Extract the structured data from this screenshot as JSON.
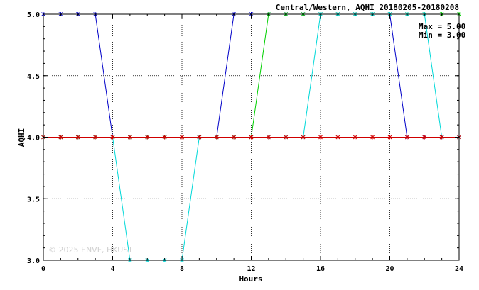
{
  "chart_data": {
    "type": "line",
    "title": "Central/Western, AQHI 20180205-20180208",
    "xlabel": "Hours",
    "ylabel": "AQHI",
    "xlim": [
      0,
      24
    ],
    "ylim": [
      3.0,
      5.0
    ],
    "xticks": [
      0,
      4,
      8,
      12,
      16,
      20,
      24
    ],
    "yticks": [
      3.0,
      3.5,
      4.0,
      4.5,
      5.0
    ],
    "xtick_labels": [
      "0",
      "4",
      "8",
      "12",
      "16",
      "20",
      "24"
    ],
    "ytick_labels": [
      "3.0",
      "3.5",
      "4.0",
      "4.5",
      "5.0"
    ],
    "grid": true,
    "annotations": {
      "max": "Max = 5.00",
      "min": "Min = 3.00"
    },
    "watermark": "© 2025  ENVF, HKUST",
    "x": [
      0,
      1,
      2,
      3,
      4,
      5,
      6,
      7,
      8,
      9,
      10,
      11,
      12,
      13,
      14,
      15,
      16,
      17,
      18,
      19,
      20,
      21,
      22,
      23,
      24
    ],
    "series": [
      {
        "color": "#0000c8",
        "values": [
          5,
          5,
          5,
          5,
          4,
          4,
          4,
          4,
          4,
          4,
          4,
          5,
          5,
          5,
          5,
          5,
          5,
          5,
          5,
          5,
          5,
          4,
          4,
          4,
          4
        ]
      },
      {
        "color": "#00d000",
        "values": [
          4,
          4,
          4,
          4,
          4,
          4,
          4,
          4,
          4,
          4,
          4,
          4,
          4,
          5,
          5,
          5,
          5,
          5,
          5,
          5,
          5,
          5,
          5,
          5,
          5
        ]
      },
      {
        "color": "#00d8d8",
        "values": [
          4,
          4,
          4,
          4,
          4,
          3,
          3,
          3,
          3,
          4,
          4,
          4,
          4,
          4,
          4,
          4,
          5,
          5,
          5,
          5,
          5,
          5,
          5,
          4,
          4
        ]
      },
      {
        "color": "#d00000",
        "values": [
          4,
          4,
          4,
          4,
          4,
          4,
          4,
          4,
          4,
          4,
          4,
          4,
          4,
          4,
          4,
          4,
          4,
          4,
          4,
          4,
          4,
          4,
          4,
          4,
          4
        ]
      }
    ]
  }
}
